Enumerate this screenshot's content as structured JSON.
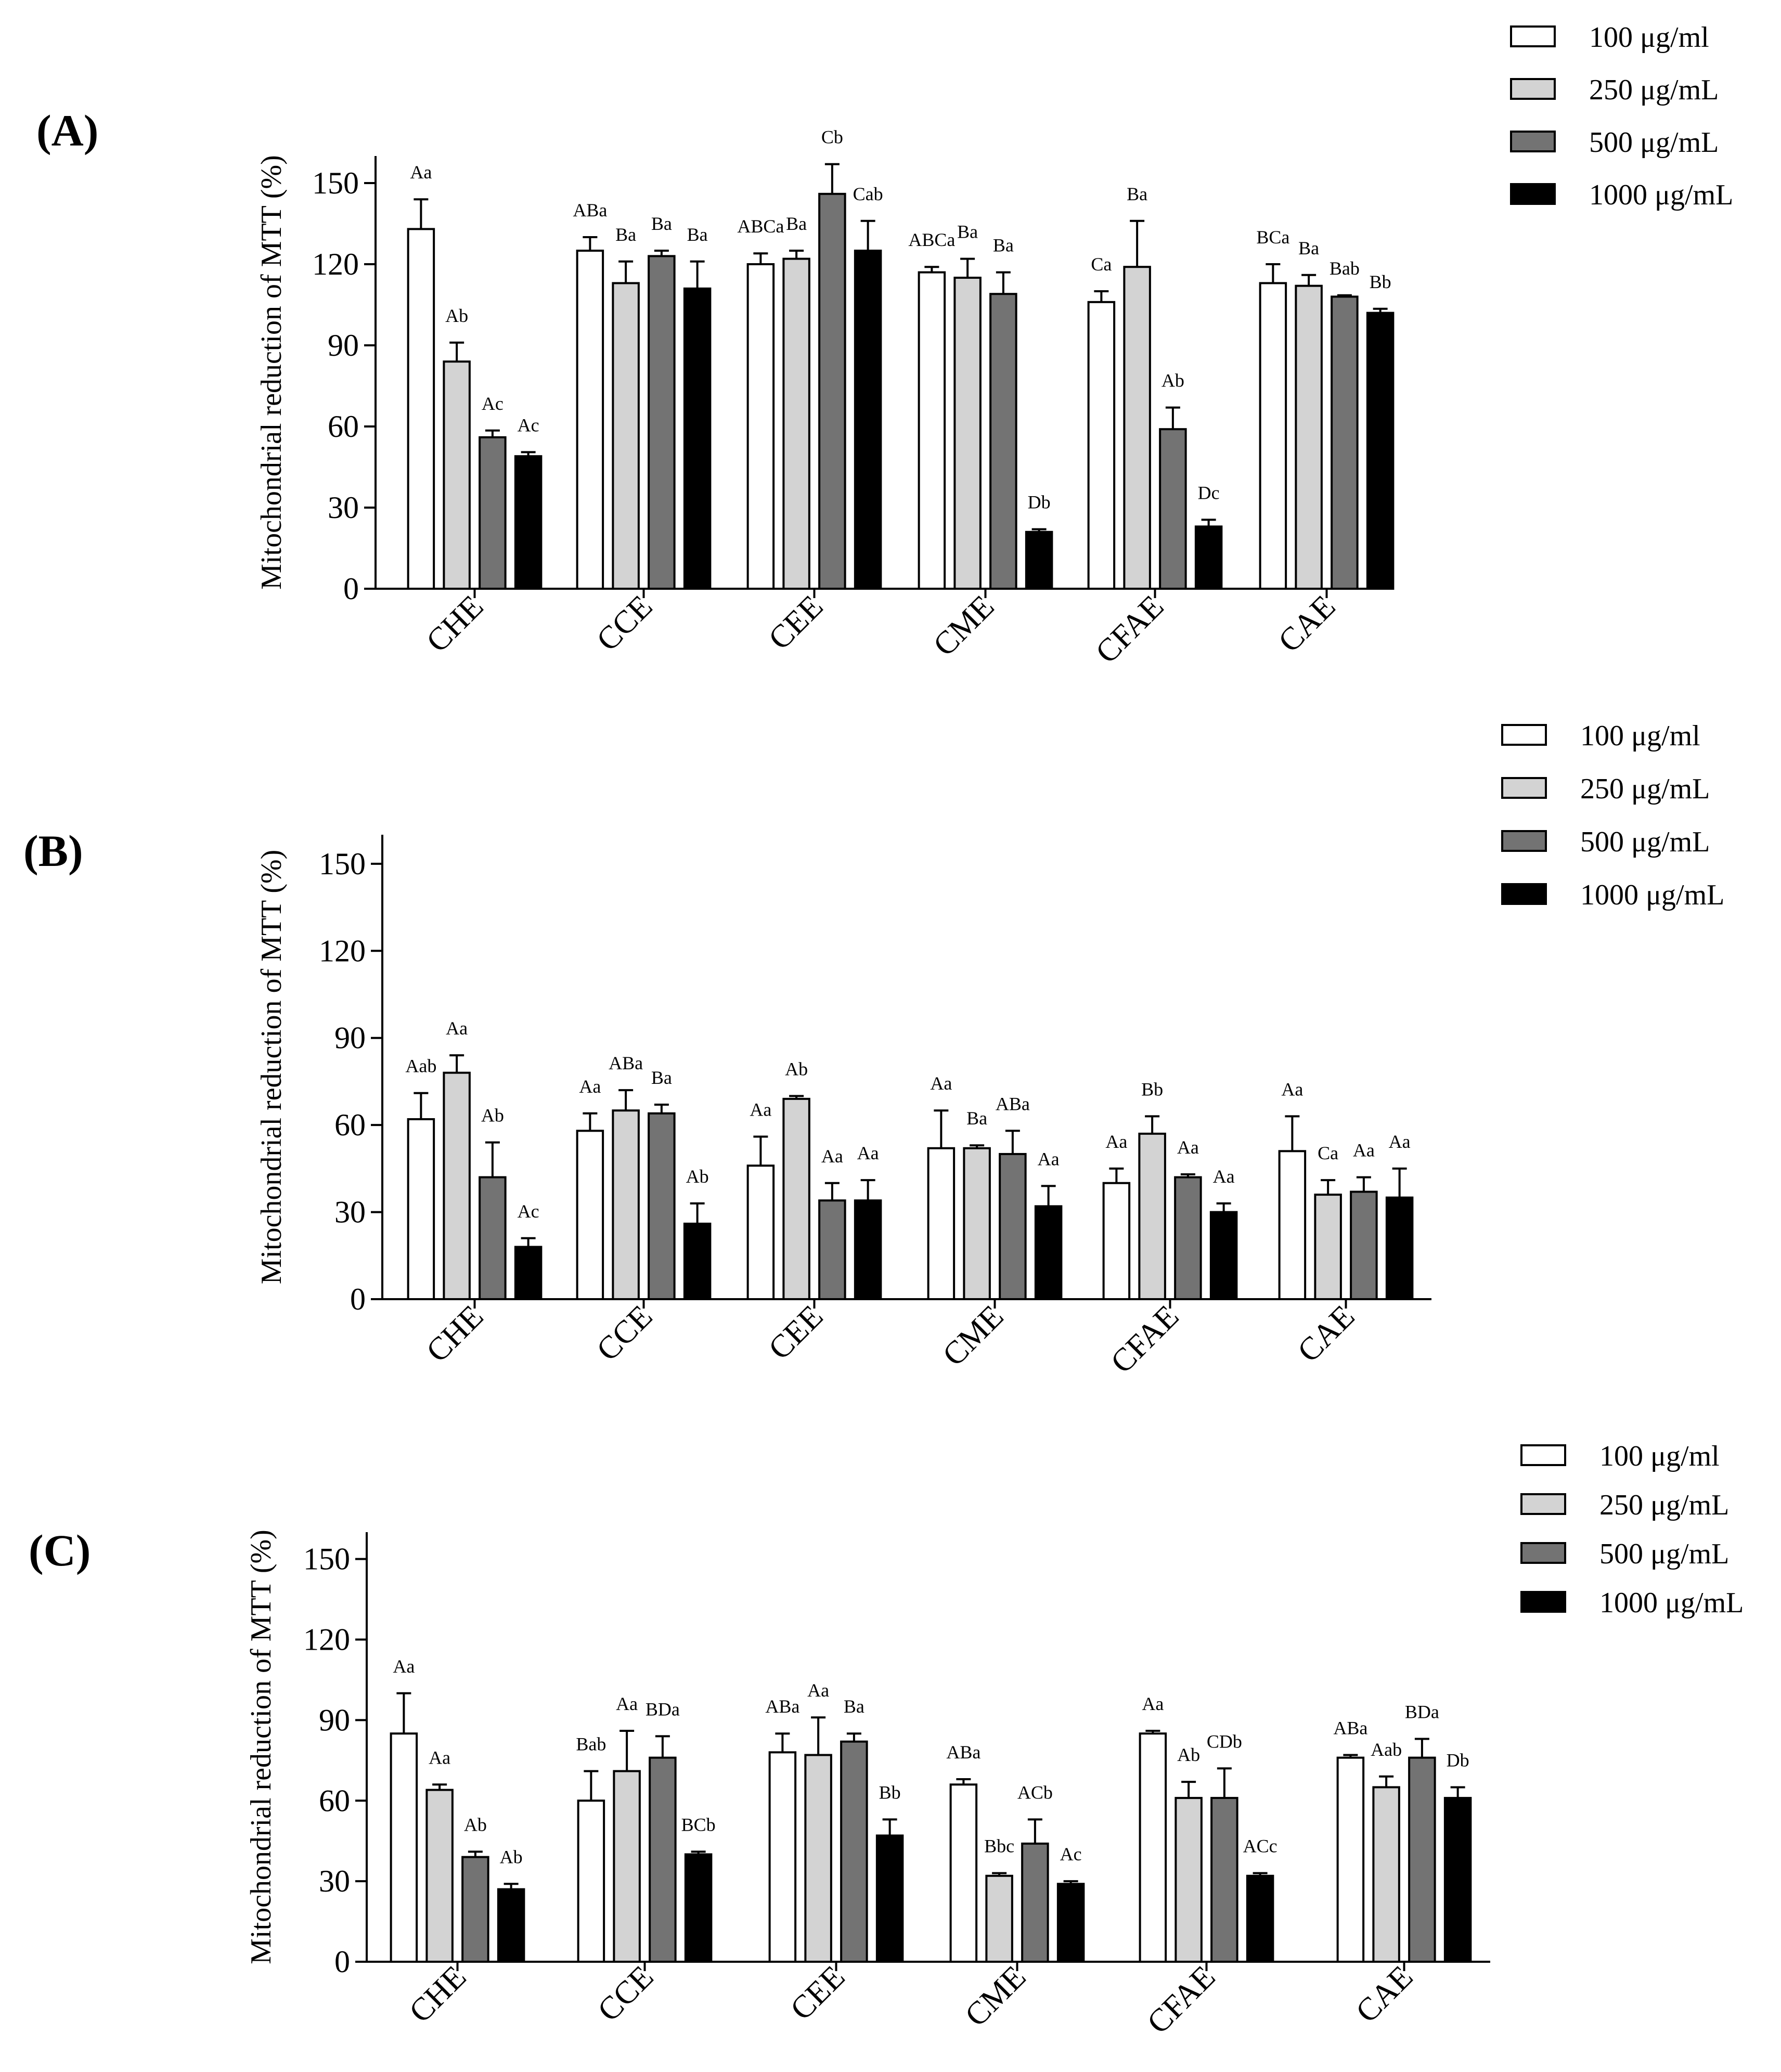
{
  "series_names": [
    "100 μg/ml",
    "250 μg/mL",
    "500 μg/mL",
    "1000 μg/mL"
  ],
  "series_colors": [
    "#ffffff",
    "#d3d3d3",
    "#737373",
    "#000000"
  ],
  "chart_data": [
    {
      "type": "bar",
      "panel_label": "(A)",
      "ylabel": "Mitochondrial reduction of MTT (%)",
      "ylim": [
        0,
        160
      ],
      "yticks": [
        0,
        30,
        60,
        90,
        120,
        150
      ],
      "legend_position": "top-right",
      "categories": [
        "CHE",
        "CCE",
        "CEE",
        "CME",
        "CFAE",
        "CAE"
      ],
      "series": [
        {
          "name": "100 μg/ml",
          "values": [
            133,
            125,
            120,
            117,
            106,
            113
          ],
          "errors": [
            11,
            5,
            4,
            2,
            4,
            7
          ],
          "labels": [
            "Aa",
            "ABa",
            "ABCa",
            "ABCa",
            "Ca",
            "BCa"
          ]
        },
        {
          "name": "250 μg/mL",
          "values": [
            84,
            113,
            122,
            115,
            119,
            112
          ],
          "errors": [
            7,
            8,
            3,
            7,
            17,
            4
          ],
          "labels": [
            "Ab",
            "Ba",
            "Ba",
            "Ba",
            "Ba",
            "Ba"
          ]
        },
        {
          "name": "500 μg/mL",
          "values": [
            56,
            123,
            146,
            109,
            59,
            108
          ],
          "errors": [
            2.5,
            2,
            11,
            8,
            8,
            0.5
          ],
          "labels": [
            "Ac",
            "Ba",
            "Cb",
            "Ba",
            "Ab",
            "Bab"
          ]
        },
        {
          "name": "1000 μg/mL",
          "values": [
            49,
            111,
            125,
            21,
            23,
            102
          ],
          "errors": [
            1.5,
            10,
            11,
            1,
            2.5,
            1.5
          ],
          "labels": [
            "Ac",
            "Ba",
            "Cab",
            "Db",
            "Dc",
            "Bb"
          ]
        }
      ]
    },
    {
      "type": "bar",
      "panel_label": "(B)",
      "ylabel": "Mitochondrial reduction of MTT (%)",
      "ylim": [
        0,
        160
      ],
      "yticks": [
        0,
        30,
        60,
        90,
        120,
        150
      ],
      "legend_position": "top-right",
      "categories": [
        "CHE",
        "CCE",
        "CEE",
        "CME",
        "CFAE",
        "CAE"
      ],
      "series": [
        {
          "name": "100 μg/ml",
          "values": [
            62,
            58,
            46,
            52,
            40,
            51
          ],
          "errors": [
            9,
            6,
            10,
            13,
            5,
            12
          ],
          "labels": [
            "Aab",
            "Aa",
            "Aa",
            "Aa",
            "Aa",
            "Aa"
          ]
        },
        {
          "name": "250 μg/mL",
          "values": [
            78,
            65,
            69,
            52,
            57,
            36
          ],
          "errors": [
            6,
            7,
            1,
            1,
            6,
            5
          ],
          "labels": [
            "Aa",
            "ABa",
            "Ab",
            "Ba",
            "Bb",
            "Ca"
          ]
        },
        {
          "name": "500 μg/mL",
          "values": [
            42,
            64,
            34,
            50,
            42,
            37
          ],
          "errors": [
            12,
            3,
            6,
            8,
            1,
            5
          ],
          "labels": [
            "Ab",
            "Ba",
            "Aa",
            "ABa",
            "Aa",
            "Aa"
          ]
        },
        {
          "name": "1000 μg/mL",
          "values": [
            18,
            26,
            34,
            32,
            30,
            35
          ],
          "errors": [
            3,
            7,
            7,
            7,
            3,
            10
          ],
          "labels": [
            "Ac",
            "Ab",
            "Aa",
            "Aa",
            "Aa",
            "Aa"
          ]
        }
      ]
    },
    {
      "type": "bar",
      "panel_label": "(C)",
      "ylabel": "Mitochondrial reduction of MTT (%)",
      "ylim": [
        0,
        160
      ],
      "yticks": [
        0,
        30,
        60,
        90,
        120,
        150
      ],
      "legend_position": "top-right",
      "categories": [
        "CHE",
        "CCE",
        "CEE",
        "CME",
        "CFAE",
        "CAE"
      ],
      "series": [
        {
          "name": "100 μg/ml",
          "values": [
            85,
            60,
            78,
            66,
            85,
            76
          ],
          "errors": [
            15,
            11,
            7,
            2,
            1,
            1
          ],
          "labels": [
            "Aa",
            "Bab",
            "ABa",
            "ABa",
            "Aa",
            "ABa"
          ]
        },
        {
          "name": "250 μg/mL",
          "values": [
            64,
            71,
            77,
            32,
            61,
            65
          ],
          "errors": [
            2,
            15,
            14,
            1,
            6,
            4
          ],
          "labels": [
            "Aa",
            "Aa",
            "Aa",
            "Bbc",
            "Ab",
            "Aab"
          ]
        },
        {
          "name": "500 μg/mL",
          "values": [
            39,
            76,
            82,
            44,
            61,
            76
          ],
          "errors": [
            2,
            8,
            3,
            9,
            11,
            7
          ],
          "labels": [
            "Ab",
            "BDa",
            "Ba",
            "ACb",
            "CDb",
            "BDa"
          ]
        },
        {
          "name": "1000 μg/mL",
          "values": [
            27,
            40,
            47,
            29,
            32,
            61
          ],
          "errors": [
            2,
            1,
            6,
            1,
            1,
            4
          ],
          "labels": [
            "Ab",
            "BCb",
            "Bb",
            "Ac",
            "ACc",
            "Db"
          ]
        }
      ]
    }
  ]
}
